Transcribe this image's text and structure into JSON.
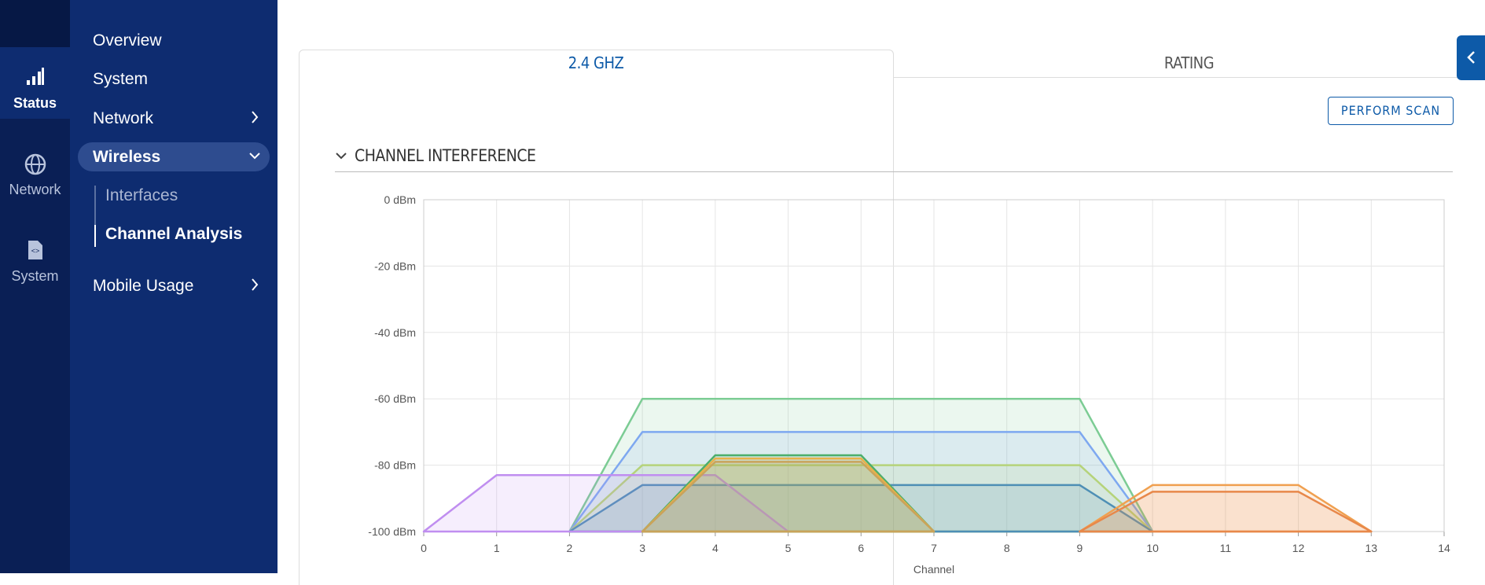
{
  "rail": [
    {
      "label": "Status"
    },
    {
      "label": "Network"
    },
    {
      "label": "System"
    }
  ],
  "menu": {
    "items": [
      "Overview",
      "System",
      "Network",
      "Wireless"
    ],
    "submenu": [
      "Interfaces",
      "Channel Analysis"
    ],
    "after": [
      "Mobile Usage"
    ]
  },
  "tabs": [
    "2.4 GHZ",
    "RATING"
  ],
  "button": "PERFORM SCAN",
  "section_title": "CHANNEL INTERFERENCE",
  "chart_data": {
    "type": "area",
    "x_label": "Channel",
    "xlim": [
      0,
      14
    ],
    "xticks": [
      0,
      1,
      2,
      3,
      4,
      5,
      6,
      7,
      8,
      9,
      10,
      11,
      12,
      13,
      14
    ],
    "ylim": [
      -100,
      0
    ],
    "yticks": [
      {
        "value": -100,
        "label": "-100 dBm"
      },
      {
        "value": -80,
        "label": "-80 dBm"
      },
      {
        "value": -60,
        "label": "-60 dBm"
      },
      {
        "value": -40,
        "label": "-40 dBm"
      },
      {
        "value": -20,
        "label": "-20 dBm"
      },
      {
        "value": 0,
        "label": "0 dBm"
      }
    ],
    "grid": true,
    "series": [
      {
        "color": "#7ccc94",
        "x": [
          2,
          3,
          9,
          10
        ],
        "values": [
          -100,
          -60,
          -60,
          -100
        ]
      },
      {
        "color": "#7ea8f0",
        "x": [
          2,
          3,
          9,
          10
        ],
        "values": [
          -100,
          -70,
          -70,
          -100
        ]
      },
      {
        "color": "#b5d37a",
        "x": [
          2,
          3,
          9,
          10
        ],
        "values": [
          -100,
          -80,
          -80,
          -100
        ]
      },
      {
        "color": "#4e8fb5",
        "x": [
          2,
          3,
          9,
          10
        ],
        "values": [
          -100,
          -86,
          -86,
          -100
        ]
      },
      {
        "color": "#c08ef0",
        "x": [
          0,
          1,
          4,
          5
        ],
        "values": [
          -100,
          -83,
          -83,
          -100
        ]
      },
      {
        "color": "#4cae6b",
        "x": [
          3,
          4,
          6,
          7
        ],
        "values": [
          -100,
          -77,
          -77,
          -100
        ]
      },
      {
        "color": "#e8b04a",
        "x": [
          3,
          4,
          6,
          7
        ],
        "values": [
          -100,
          -78,
          -78,
          -100
        ]
      },
      {
        "color": "#c9a35a",
        "x": [
          3,
          4,
          6,
          7
        ],
        "values": [
          -100,
          -79,
          -79,
          -100
        ]
      },
      {
        "color": "#f0a050",
        "x": [
          9,
          10,
          12,
          13
        ],
        "values": [
          -100,
          -86,
          -86,
          -100
        ]
      },
      {
        "color": "#e8884a",
        "x": [
          9,
          10,
          12,
          13
        ],
        "values": [
          -100,
          -88,
          -88,
          -100
        ]
      }
    ]
  }
}
